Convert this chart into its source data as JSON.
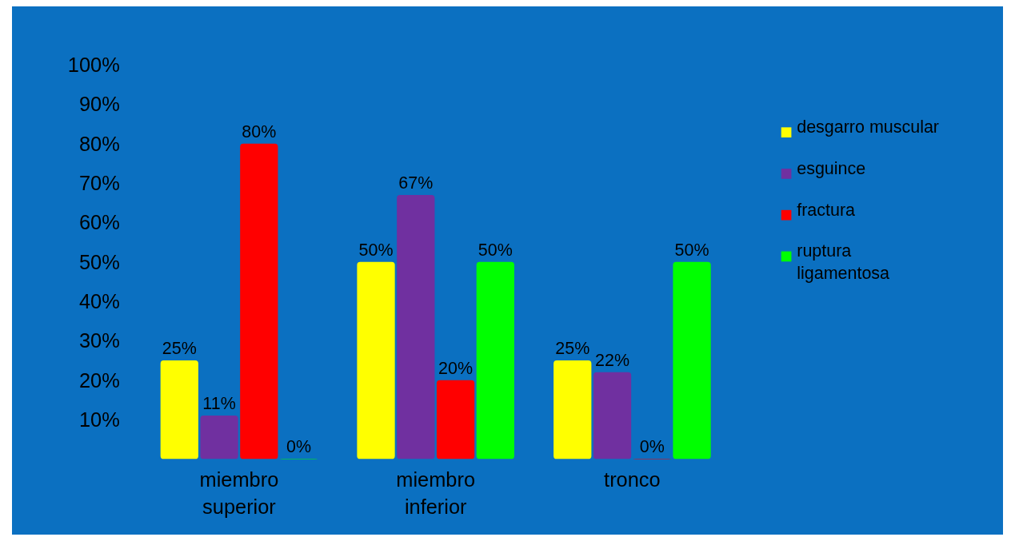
{
  "chart_data": {
    "type": "bar",
    "categories": [
      "miembro superior",
      "miembro inferior",
      "tronco"
    ],
    "series": [
      {
        "name": "desgarro muscular",
        "color": "#ffff00",
        "values": [
          25,
          50,
          25
        ],
        "value_labels": [
          "25%",
          "50%",
          "25%"
        ]
      },
      {
        "name": "esguince",
        "color": "#7030a0",
        "values": [
          11,
          67,
          22
        ],
        "value_labels": [
          "11%",
          "67%",
          "22%"
        ]
      },
      {
        "name": "fractura",
        "color": "#ff0000",
        "values": [
          80,
          20,
          0
        ],
        "value_labels": [
          "80%",
          "20%",
          "0%"
        ]
      },
      {
        "name": "ruptura ligamentosa",
        "color": "#00ff00",
        "values": [
          0,
          50,
          50
        ],
        "value_labels": [
          "0%",
          "50%",
          "50%"
        ]
      }
    ],
    "ylim": [
      0,
      100
    ],
    "yticks": [
      {
        "value": 10,
        "label": "10%"
      },
      {
        "value": 20,
        "label": "20%"
      },
      {
        "value": 30,
        "label": "30%"
      },
      {
        "value": 40,
        "label": "40%"
      },
      {
        "value": 50,
        "label": "50%"
      },
      {
        "value": 60,
        "label": "60%"
      },
      {
        "value": 70,
        "label": "70%"
      },
      {
        "value": 80,
        "label": "80%"
      },
      {
        "value": 90,
        "label": "90%"
      },
      {
        "value": 100,
        "label": "100%"
      }
    ],
    "grid": false,
    "legend": "right"
  }
}
